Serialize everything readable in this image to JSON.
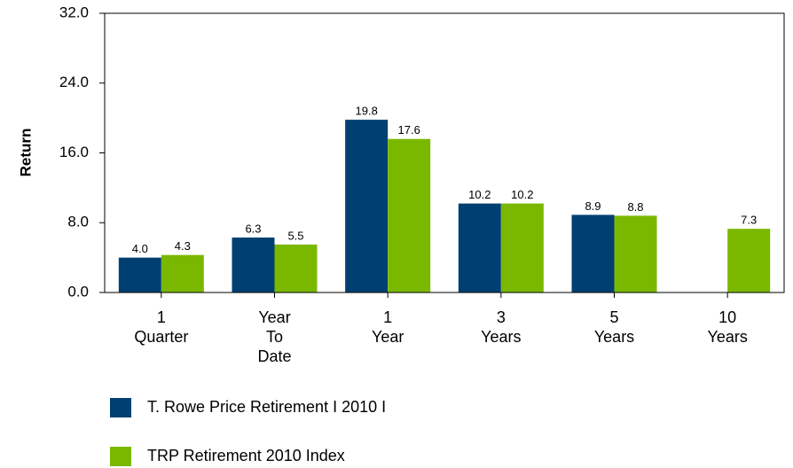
{
  "chart_data": {
    "type": "bar",
    "ylabel": "Return",
    "categories": [
      "1\nQuarter",
      "Year\nTo\nDate",
      "1\nYear",
      "3\nYears",
      "5\nYears",
      "10\nYears"
    ],
    "series": [
      {
        "name": "T. Rowe Price Retirement I 2010 I",
        "color": "#003f72",
        "values": [
          4.0,
          6.3,
          19.8,
          10.2,
          8.9,
          null
        ],
        "value_labels": [
          "4.0",
          "6.3",
          "19.8",
          "10.2",
          "8.9",
          null
        ]
      },
      {
        "name": "TRP Retirement 2010 Index",
        "color": "#7ab800",
        "values": [
          4.3,
          5.5,
          17.6,
          10.2,
          8.8,
          7.3
        ],
        "value_labels": [
          "4.3",
          "5.5",
          "17.6",
          "10.2",
          "8.8",
          "7.3"
        ]
      }
    ],
    "ylim": [
      0,
      32
    ],
    "yticks": [
      {
        "value": 0,
        "label": "0.0"
      },
      {
        "value": 8,
        "label": "8.0"
      },
      {
        "value": 16,
        "label": "16.0"
      },
      {
        "value": 24,
        "label": "24.0"
      },
      {
        "value": 32,
        "label": "32.0"
      }
    ],
    "grid": false
  }
}
